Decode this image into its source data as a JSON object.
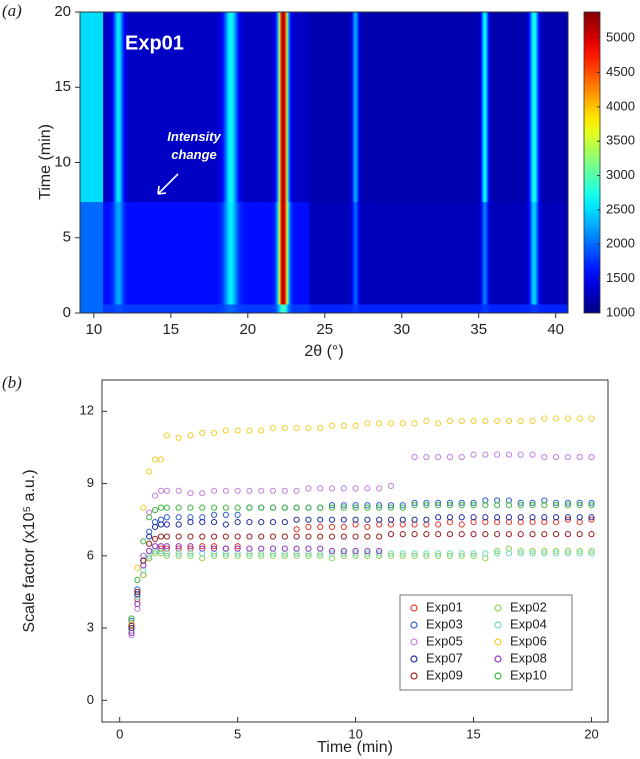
{
  "chart_data": [
    {
      "type": "heatmap",
      "panel_label": "(a)",
      "x_label": "2θ (°)",
      "y_label": "Time (min)",
      "xlim": [
        9.1,
        40.8
      ],
      "ylim": [
        0,
        20
      ],
      "xticks": [
        10,
        15,
        20,
        25,
        30,
        35,
        40
      ],
      "yticks": [
        0,
        5,
        10,
        15,
        20
      ],
      "colormap": "jet",
      "clim": [
        1000,
        5380
      ],
      "cticks": [
        1000,
        1500,
        2000,
        2500,
        3000,
        3500,
        4000,
        4500,
        5000
      ],
      "background": {
        "x_edges": [
          9.1,
          10.6,
          24,
          40.8
        ],
        "y_edges": [
          0,
          0.6,
          7.4,
          20
        ],
        "z": [
          [
            2000,
            1800,
            1700
          ],
          [
            2000,
            1600,
            1250
          ],
          [
            2500,
            1300,
            1200
          ]
        ]
      },
      "peaks": [
        {
          "center": 11.6,
          "fwhm": 0.5,
          "z": [
            1900,
            2300,
            2600
          ]
        },
        {
          "center": 18.9,
          "fwhm": 0.7,
          "z": [
            2000,
            2600,
            2700
          ]
        },
        {
          "center": 22.3,
          "fwhm": 0.5,
          "z": [
            3000,
            5300,
            5350
          ]
        },
        {
          "center": 27.0,
          "fwhm": 0.35,
          "z": [
            1800,
            2000,
            2300
          ]
        },
        {
          "center": 35.4,
          "fwhm": 0.35,
          "z": [
            1800,
            2100,
            2700
          ]
        },
        {
          "center": 38.6,
          "fwhm": 0.45,
          "z": [
            1800,
            2500,
            2800
          ]
        }
      ],
      "annotations": [
        "Exp01",
        "Intensity change"
      ]
    },
    {
      "type": "scatter",
      "panel_label": "(b)",
      "x_label": "Time (min)",
      "y_label": "Scale factor (x10⁵ a.u.)",
      "xlim": [
        -0.75,
        20.7
      ],
      "ylim": [
        -0.9,
        13.3
      ],
      "xticks": [
        0,
        5,
        10,
        15,
        20
      ],
      "yticks": [
        0,
        3,
        6,
        9,
        12
      ],
      "legend": "lower right",
      "x": [
        0.5,
        0.75,
        1,
        1.25,
        1.5,
        1.75,
        2,
        2.5,
        3,
        3.5,
        4,
        4.5,
        5,
        5.5,
        6,
        6.5,
        7,
        7.5,
        8,
        8.5,
        9,
        9.5,
        10,
        10.5,
        11,
        11.5,
        12,
        12.5,
        13,
        13.5,
        14,
        14.5,
        15,
        15.5,
        16,
        16.5,
        17,
        17.5,
        18,
        18.5,
        19,
        19.5,
        20
      ],
      "series": [
        {
          "name": "Exp01",
          "color": "#e8392c",
          "values": [
            3.1,
            4.2,
            5.2,
            5.9,
            6.2,
            6.3,
            6.3,
            6.3,
            6.3,
            6.4,
            6.4,
            6.3,
            6.4,
            null,
            null,
            null,
            null,
            7.1,
            7.2,
            7.2,
            7.2,
            7.2,
            7.3,
            7.2,
            7.3,
            7.3,
            7.3,
            7.3,
            7.3,
            7.3,
            7.4,
            7.3,
            7.4,
            7.4,
            7.4,
            7.4,
            7.4,
            7.4,
            7.4,
            7.4,
            7.5,
            7.4,
            7.5
          ]
        },
        {
          "name": "Exp02",
          "color": "#8fd14f",
          "values": [
            2.9,
            4.0,
            5.2,
            5.9,
            6.1,
            6.1,
            6.0,
            6.0,
            6.0,
            5.9,
            6.0,
            6.0,
            6.0,
            6.0,
            6.0,
            6.0,
            6.0,
            6.0,
            6.0,
            6.0,
            5.9,
            6.0,
            6.0,
            6.0,
            6.0,
            6.0,
            6.0,
            6.0,
            6.0,
            6.0,
            6.0,
            6.0,
            6.0,
            5.9,
            6.2,
            6.3,
            6.2,
            6.2,
            6.2,
            6.2,
            6.2,
            6.2,
            6.2
          ]
        },
        {
          "name": "Exp03",
          "color": "#2f5fd0",
          "values": [
            3.3,
            4.6,
            6.0,
            7.0,
            7.4,
            7.5,
            7.6,
            7.6,
            7.6,
            7.6,
            7.7,
            7.7,
            7.7,
            8.0,
            8.0,
            8.0,
            8.0,
            8.0,
            8.0,
            8.0,
            8.1,
            8.1,
            8.1,
            8.1,
            8.1,
            8.1,
            8.1,
            8.2,
            8.2,
            8.2,
            8.2,
            8.2,
            8.2,
            8.3,
            8.3,
            8.3,
            8.2,
            8.2,
            8.3,
            8.2,
            8.2,
            8.2,
            8.2
          ]
        },
        {
          "name": "Exp04",
          "color": "#6fd8c4",
          "values": [
            3.0,
            4.3,
            5.4,
            6.0,
            6.2,
            6.2,
            6.1,
            6.1,
            6.1,
            6.1,
            6.1,
            6.1,
            6.1,
            6.1,
            6.1,
            6.1,
            6.1,
            6.1,
            6.1,
            6.1,
            6.1,
            6.1,
            6.1,
            6.1,
            6.1,
            6.1,
            6.1,
            6.1,
            6.1,
            6.1,
            6.1,
            6.1,
            6.1,
            6.1,
            6.1,
            6.1,
            6.1,
            6.1,
            6.1,
            6.1,
            6.1,
            6.1,
            6.1
          ]
        },
        {
          "name": "Exp05",
          "color": "#c080e0",
          "values": [
            2.7,
            3.8,
            6.0,
            7.8,
            8.5,
            8.7,
            8.7,
            8.7,
            8.6,
            8.6,
            8.7,
            8.7,
            8.7,
            8.7,
            8.7,
            8.7,
            8.7,
            8.7,
            8.8,
            8.8,
            8.8,
            8.8,
            8.8,
            8.8,
            8.8,
            8.9,
            null,
            10.1,
            10.1,
            10.1,
            10.1,
            10.1,
            10.2,
            10.2,
            10.2,
            10.2,
            10.2,
            10.2,
            10.1,
            10.1,
            10.1,
            10.1,
            10.1
          ]
        },
        {
          "name": "Exp06",
          "color": "#f2cf2a",
          "values": [
            3.2,
            5.5,
            8.0,
            9.5,
            10.0,
            10.0,
            11.0,
            10.9,
            11.0,
            11.1,
            11.1,
            11.2,
            11.2,
            11.2,
            11.2,
            11.3,
            11.3,
            11.3,
            11.3,
            11.3,
            11.4,
            11.4,
            11.4,
            11.5,
            11.5,
            11.5,
            11.5,
            11.5,
            11.6,
            11.5,
            11.6,
            11.6,
            11.6,
            11.6,
            11.6,
            11.6,
            11.6,
            11.6,
            11.7,
            11.7,
            11.7,
            11.7,
            11.7
          ]
        },
        {
          "name": "Exp07",
          "color": "#1f2f9e",
          "values": [
            3.0,
            4.4,
            5.8,
            6.8,
            7.2,
            7.3,
            7.3,
            7.3,
            7.4,
            7.4,
            7.4,
            7.3,
            7.4,
            7.4,
            7.4,
            7.4,
            7.4,
            7.5,
            7.5,
            7.5,
            7.5,
            7.5,
            7.5,
            7.5,
            7.5,
            7.5,
            7.5,
            7.5,
            7.5,
            7.6,
            7.6,
            7.6,
            7.6,
            7.6,
            7.6,
            7.6,
            7.6,
            7.6,
            7.6,
            7.6,
            7.6,
            7.6,
            7.6
          ]
        },
        {
          "name": "Exp08",
          "color": "#9438c0",
          "values": [
            2.8,
            4.0,
            5.6,
            6.2,
            6.4,
            6.4,
            6.4,
            6.4,
            6.4,
            6.3,
            6.3,
            6.3,
            6.3,
            6.3,
            6.3,
            6.3,
            6.3,
            6.3,
            6.3,
            6.3,
            6.2,
            6.2,
            6.2,
            6.2,
            6.2,
            null,
            null,
            null,
            null,
            null,
            null,
            null,
            null,
            null,
            null,
            null,
            null,
            null,
            null,
            null,
            null,
            null,
            null
          ]
        },
        {
          "name": "Exp09",
          "color": "#9b2020",
          "values": [
            3.1,
            4.5,
            5.8,
            6.5,
            6.7,
            6.8,
            6.8,
            6.8,
            6.8,
            6.8,
            6.8,
            6.8,
            6.8,
            6.8,
            6.8,
            6.8,
            6.8,
            6.8,
            6.8,
            6.8,
            6.8,
            6.8,
            6.8,
            6.8,
            6.8,
            6.9,
            6.9,
            6.9,
            6.9,
            6.9,
            6.9,
            6.9,
            6.9,
            6.9,
            6.9,
            6.9,
            6.9,
            6.9,
            6.9,
            6.9,
            6.9,
            6.9,
            6.9
          ]
        },
        {
          "name": "Exp10",
          "color": "#3cb83c",
          "values": [
            3.4,
            5.0,
            6.6,
            7.6,
            7.9,
            8.0,
            8.0,
            8.0,
            8.0,
            8.0,
            8.0,
            8.0,
            8.0,
            8.0,
            8.0,
            8.0,
            8.0,
            8.0,
            8.0,
            8.0,
            8.0,
            8.0,
            8.0,
            8.0,
            8.0,
            8.0,
            8.0,
            8.1,
            8.1,
            8.1,
            8.1,
            8.1,
            8.1,
            8.1,
            8.1,
            8.1,
            8.1,
            8.1,
            8.1,
            8.1,
            8.1,
            8.1,
            8.1
          ]
        }
      ]
    }
  ]
}
